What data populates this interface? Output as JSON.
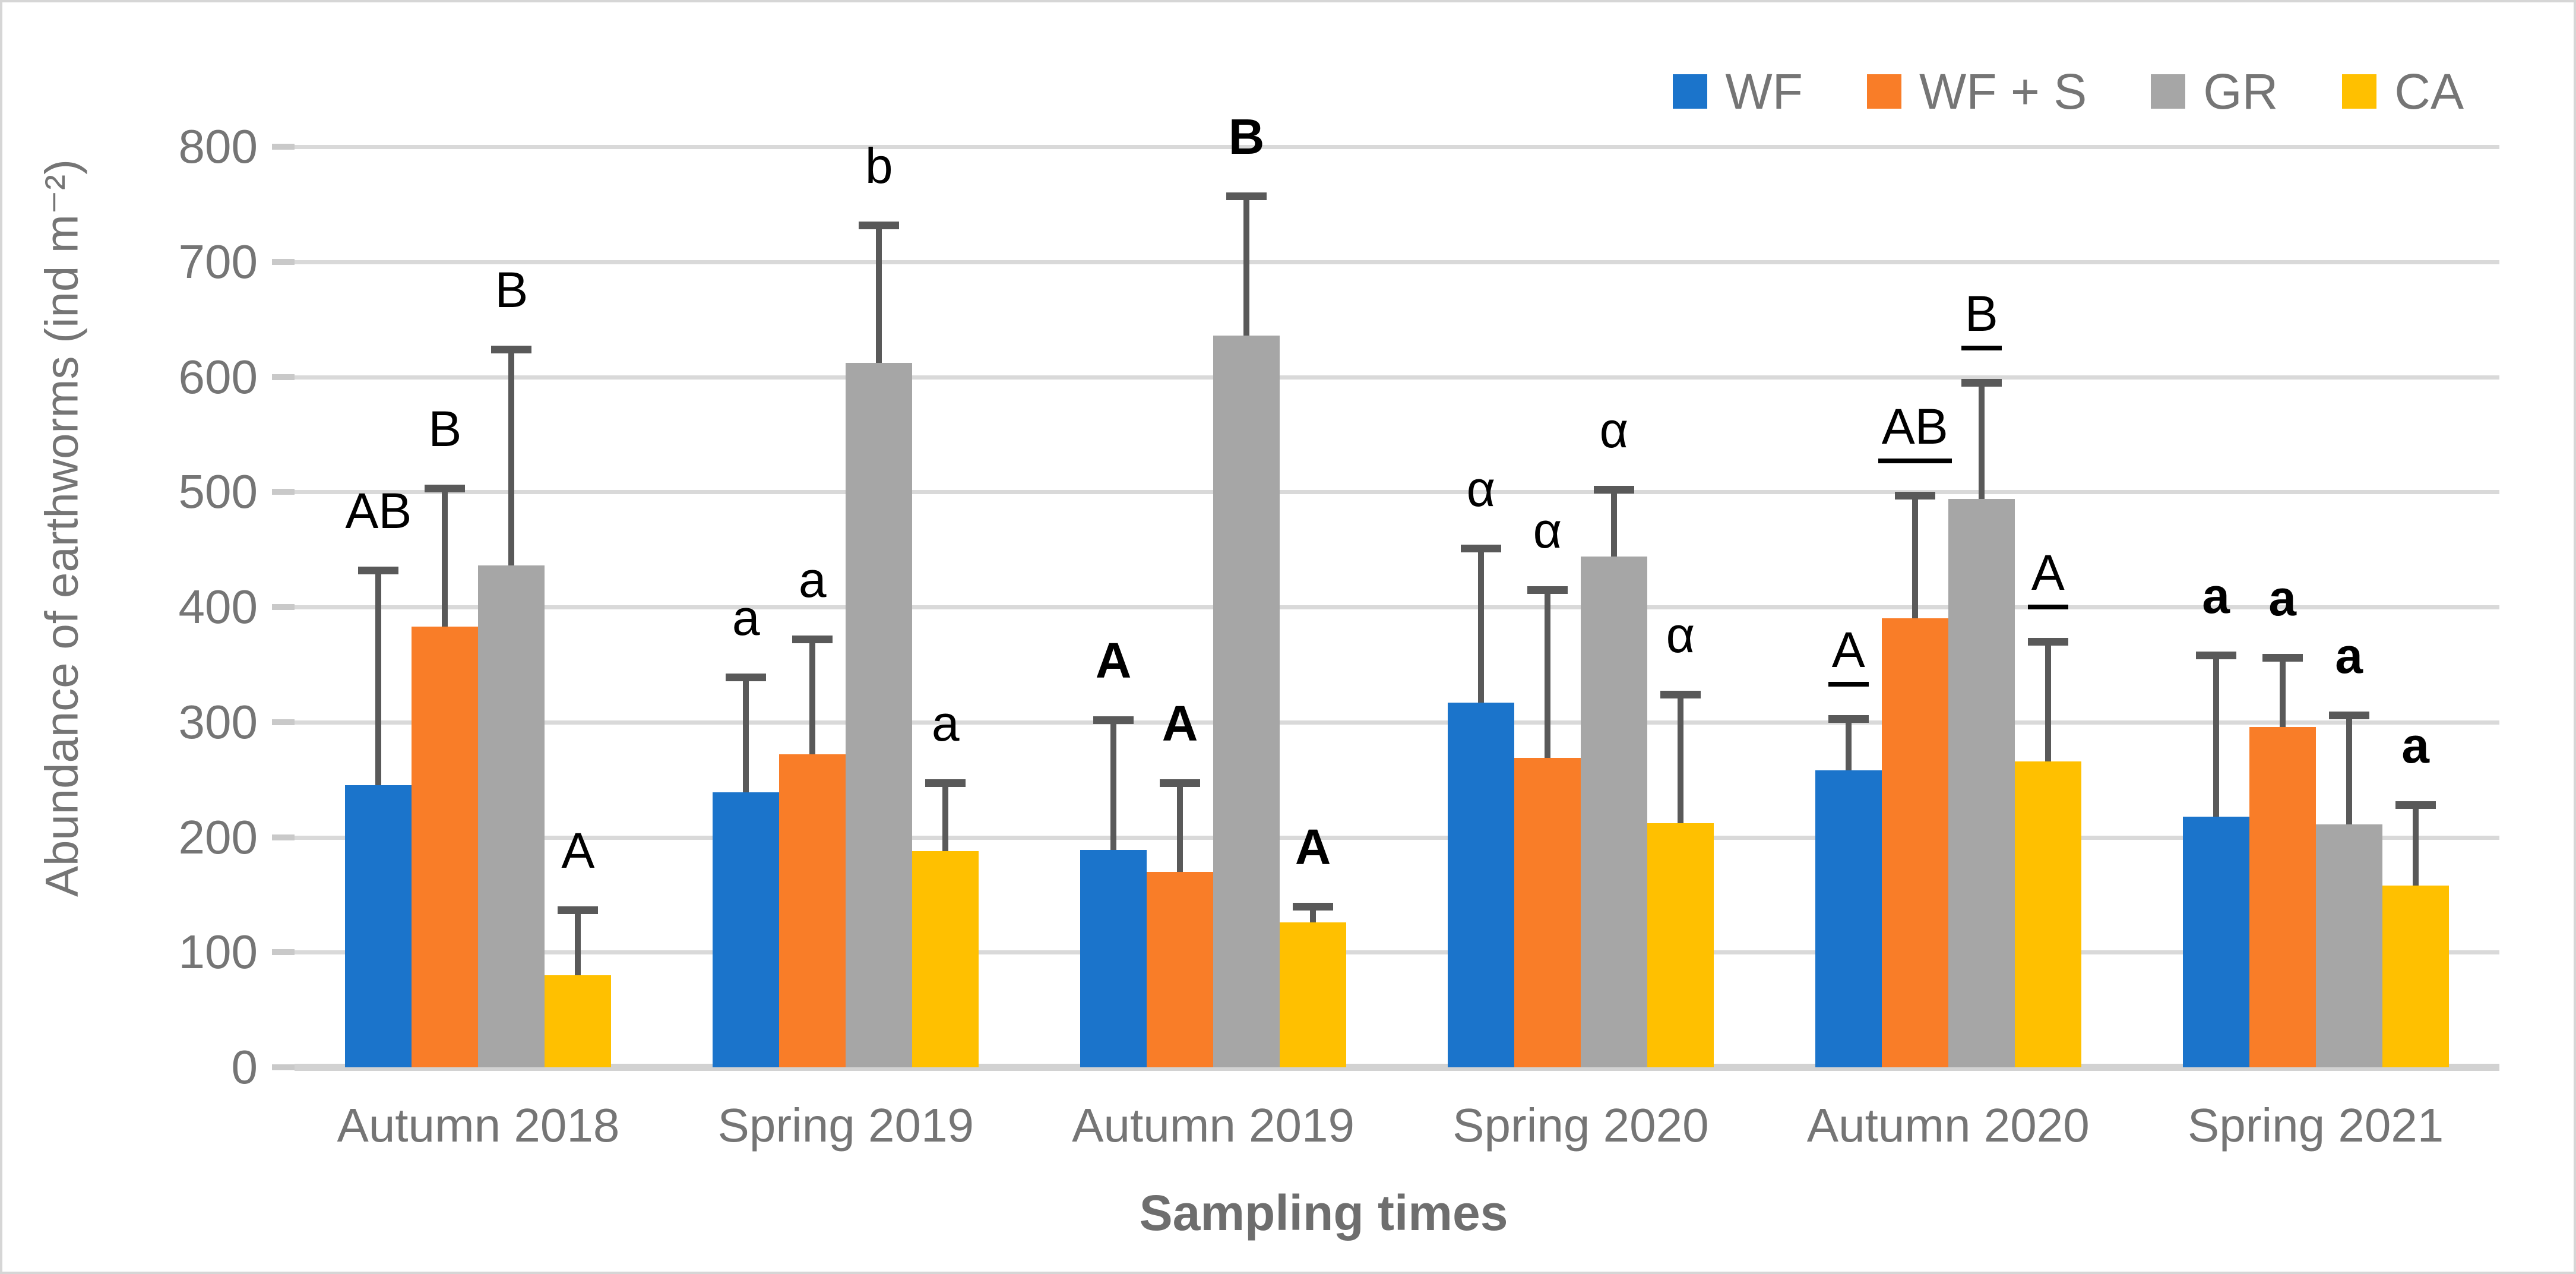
{
  "figure": {
    "background": "#FFFFFF",
    "border_color": "#D6D6D6",
    "grid_color": "#D9D9D9",
    "error_bar_color": "#595959",
    "axis_text_color": "#757575",
    "annotation_color": "#000000"
  },
  "legend": {
    "items": [
      {
        "label": "WF",
        "color": "#1B74CB"
      },
      {
        "label": "WF + S",
        "color": "#F97D28"
      },
      {
        "label": "GR",
        "color": "#A6A6A6"
      },
      {
        "label": "CA",
        "color": "#FFC000"
      }
    ]
  },
  "y_axis": {
    "title": "Abundance of earthworms  (ind m⁻²)",
    "min": 0,
    "max": 800,
    "step": 100,
    "tick_labels": [
      "0",
      "100",
      "200",
      "300",
      "400",
      "500",
      "600",
      "700",
      "800"
    ]
  },
  "x_axis": {
    "title": "Sampling times",
    "categories": [
      "Autumn 2018",
      "Spring 2019",
      "Autumn 2019",
      "Spring 2020",
      "Autumn 2020",
      "Spring 2021"
    ]
  },
  "chart_data": {
    "type": "bar",
    "title": "",
    "xlabel": "Sampling times",
    "ylabel": "Abundance of earthworms (ind m⁻²)",
    "ylim": [
      0,
      800
    ],
    "ytick_step": 100,
    "grid": true,
    "legend_position": "top-right",
    "categories": [
      "Autumn 2018",
      "Spring 2019",
      "Autumn 2019",
      "Spring 2020",
      "Autumn 2020",
      "Spring 2021"
    ],
    "series": [
      {
        "name": "WF",
        "color": "#1B74CB",
        "values": [
          245,
          239,
          189,
          317,
          258,
          218
        ],
        "error_top": [
          432,
          339,
          302,
          451,
          303,
          358
        ]
      },
      {
        "name": "WF + S",
        "color": "#F97D28",
        "values": [
          383,
          272,
          170,
          269,
          390,
          296
        ],
        "error_top": [
          503,
          372,
          247,
          415,
          497,
          356
        ]
      },
      {
        "name": "GR",
        "color": "#A6A6A6",
        "values": [
          436,
          612,
          636,
          444,
          494,
          211
        ],
        "error_top": [
          624,
          732,
          757,
          502,
          595,
          306
        ]
      },
      {
        "name": "CA",
        "color": "#FFC000",
        "values": [
          80,
          188,
          126,
          212,
          266,
          158
        ],
        "error_top": [
          137,
          247,
          140,
          324,
          370,
          228
        ]
      }
    ],
    "annotations": [
      [
        {
          "text": "AB",
          "bold": false,
          "underline": false
        },
        {
          "text": "B",
          "bold": false,
          "underline": false
        },
        {
          "text": "B",
          "bold": false,
          "underline": false
        },
        {
          "text": "A",
          "bold": false,
          "underline": false
        }
      ],
      [
        {
          "text": "a",
          "bold": false,
          "underline": false
        },
        {
          "text": "a",
          "bold": false,
          "underline": false
        },
        {
          "text": "b",
          "bold": false,
          "underline": false
        },
        {
          "text": "a",
          "bold": false,
          "underline": false
        }
      ],
      [
        {
          "text": "A",
          "bold": true,
          "underline": false
        },
        {
          "text": "A",
          "bold": true,
          "underline": false
        },
        {
          "text": "B",
          "bold": true,
          "underline": false
        },
        {
          "text": "A",
          "bold": true,
          "underline": false
        }
      ],
      [
        {
          "text": "α",
          "bold": false,
          "underline": false
        },
        {
          "text": "α",
          "bold": false,
          "underline": false
        },
        {
          "text": "α",
          "bold": false,
          "underline": false
        },
        {
          "text": "α",
          "bold": false,
          "underline": false
        }
      ],
      [
        {
          "text": "A",
          "bold": false,
          "underline": true
        },
        {
          "text": "AB",
          "bold": false,
          "underline": true
        },
        {
          "text": "B",
          "bold": false,
          "underline": true
        },
        {
          "text": "A",
          "bold": false,
          "underline": true
        }
      ],
      [
        {
          "text": "a",
          "bold": true,
          "underline": false
        },
        {
          "text": "a",
          "bold": true,
          "underline": false
        },
        {
          "text": "a",
          "bold": true,
          "underline": false
        },
        {
          "text": "a",
          "bold": true,
          "underline": false
        }
      ]
    ]
  }
}
